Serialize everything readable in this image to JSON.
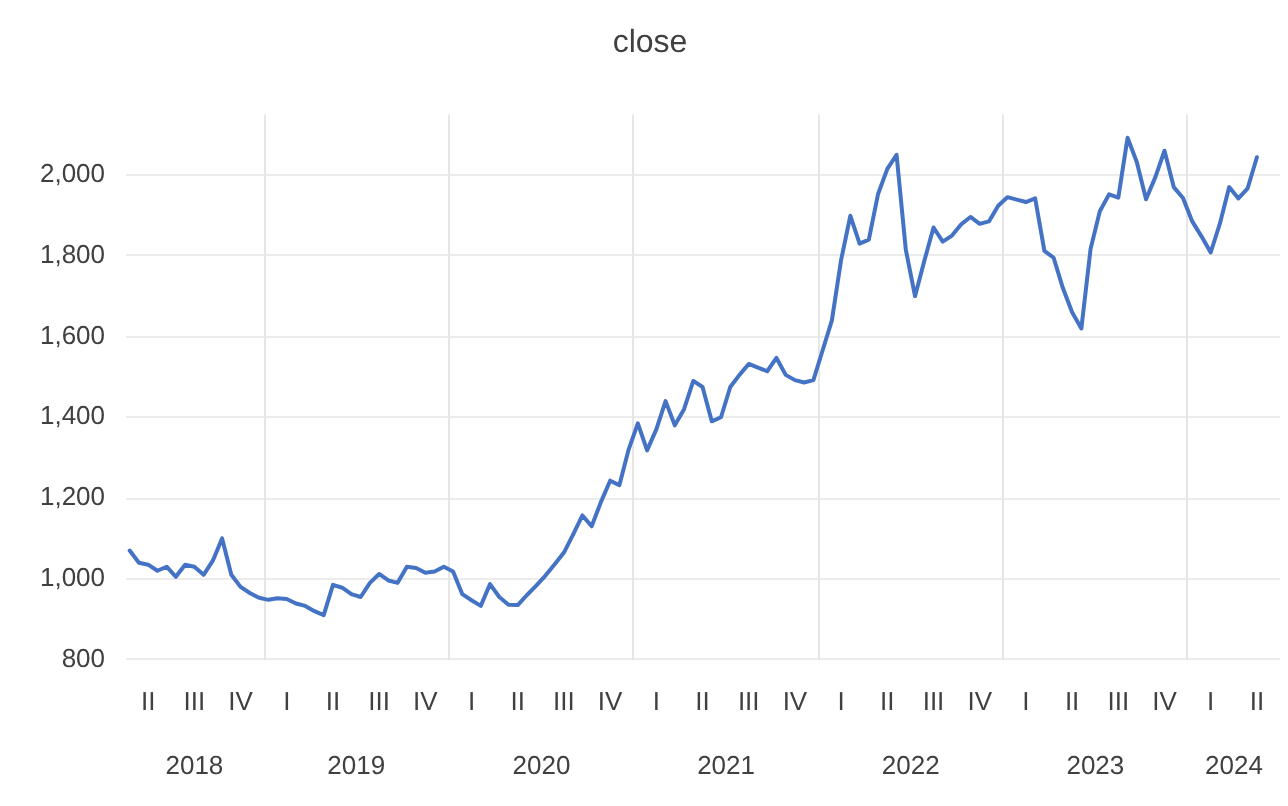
{
  "chart_data": {
    "type": "line",
    "title": "close",
    "categories": [
      null,
      null,
      "II",
      null,
      null,
      null,
      null,
      "III",
      null,
      null,
      null,
      null,
      "IV",
      null,
      null,
      null,
      null,
      "I",
      null,
      null,
      null,
      null,
      "II",
      null,
      null,
      null,
      null,
      "III",
      null,
      null,
      null,
      null,
      "IV",
      null,
      null,
      null,
      null,
      "I",
      null,
      null,
      null,
      null,
      "II",
      null,
      null,
      null,
      null,
      "III",
      null,
      null,
      null,
      null,
      "IV",
      null,
      null,
      null,
      null,
      "I",
      null,
      null,
      null,
      null,
      "II",
      null,
      null,
      null,
      null,
      "III",
      null,
      null,
      null,
      null,
      "IV",
      null,
      null,
      null,
      null,
      "I",
      null,
      null,
      null,
      null,
      "II",
      null,
      null,
      null,
      null,
      "III",
      null,
      null,
      null,
      null,
      "IV",
      null,
      null,
      null,
      null,
      "I",
      null,
      null,
      null,
      null,
      "II",
      null,
      null,
      null,
      null,
      "III",
      null,
      null,
      null,
      null,
      "IV",
      null,
      null,
      null,
      null,
      "I",
      null,
      null,
      null,
      null,
      "II",
      null,
      null
    ],
    "series": [
      {
        "color": "#4472c4",
        "values": [
          1070,
          1040,
          1035,
          1020,
          1030,
          1005,
          1035,
          1030,
          1010,
          1045,
          1100,
          1010,
          980,
          965,
          953,
          948,
          952,
          950,
          939,
          933,
          920,
          910,
          985,
          978,
          962,
          955,
          990,
          1012,
          996,
          990,
          1030,
          1027,
          1015,
          1018,
          1030,
          1018,
          962,
          947,
          933,
          987,
          955,
          936,
          935,
          960,
          983,
          1008,
          1036,
          1065,
          1110,
          1157,
          1130,
          1190,
          1243,
          1232,
          1320,
          1385,
          1318,
          1370,
          1440,
          1380,
          1420,
          1490,
          1475,
          1390,
          1400,
          1475,
          1505,
          1532,
          1523,
          1514,
          1547,
          1505,
          1492,
          1486,
          1492,
          1566,
          1640,
          1790,
          1899,
          1830,
          1840,
          1953,
          2015,
          2050,
          1815,
          1700,
          1787,
          1870,
          1835,
          1850,
          1878,
          1896,
          1879,
          1885,
          1924,
          1945,
          1939,
          1933,
          1942,
          1812,
          1795,
          1720,
          1660,
          1620,
          1817,
          1910,
          1952,
          1944,
          2092,
          2032,
          1940,
          1994,
          2060,
          1970,
          1943,
          1885,
          1848,
          1808,
          1880,
          1970,
          1942,
          1967,
          2044,
          null,
          null
        ]
      }
    ],
    "x2lim": [
      "2018-04-01",
      "2024-07-01"
    ],
    "x2ticks": [
      {
        "value": "2018-08-16",
        "label": "2018"
      },
      {
        "value": "2019-01-01",
        "label": null
      },
      {
        "value": "2019-07-02",
        "label": "2019"
      },
      {
        "value": "2020-01-01",
        "label": null
      },
      {
        "value": "2020-07-02",
        "label": "2020"
      },
      {
        "value": "2021-01-01",
        "label": null
      },
      {
        "value": "2021-07-02",
        "label": "2021"
      },
      {
        "value": "2022-01-01",
        "label": null
      },
      {
        "value": "2022-07-02",
        "label": "2022"
      },
      {
        "value": "2023-01-01",
        "label": null
      },
      {
        "value": "2023-07-02",
        "label": "2023"
      },
      {
        "value": "2024-01-01",
        "label": null
      },
      {
        "value": "2024-04-01",
        "label": "2024"
      }
    ],
    "ylim": [
      800,
      2150
    ],
    "yticks": [
      {
        "value": 800,
        "label": "800"
      },
      {
        "value": 1000,
        "label": "1,000"
      },
      {
        "value": 1200,
        "label": "1,200"
      },
      {
        "value": 1400,
        "label": "1,400"
      },
      {
        "value": 1600,
        "label": "1,600"
      },
      {
        "value": 1800,
        "label": "1,800"
      },
      {
        "value": 2000,
        "label": "2,000"
      }
    ],
    "grid": true,
    "legend": false,
    "marker": "none",
    "line_style": "solid"
  }
}
